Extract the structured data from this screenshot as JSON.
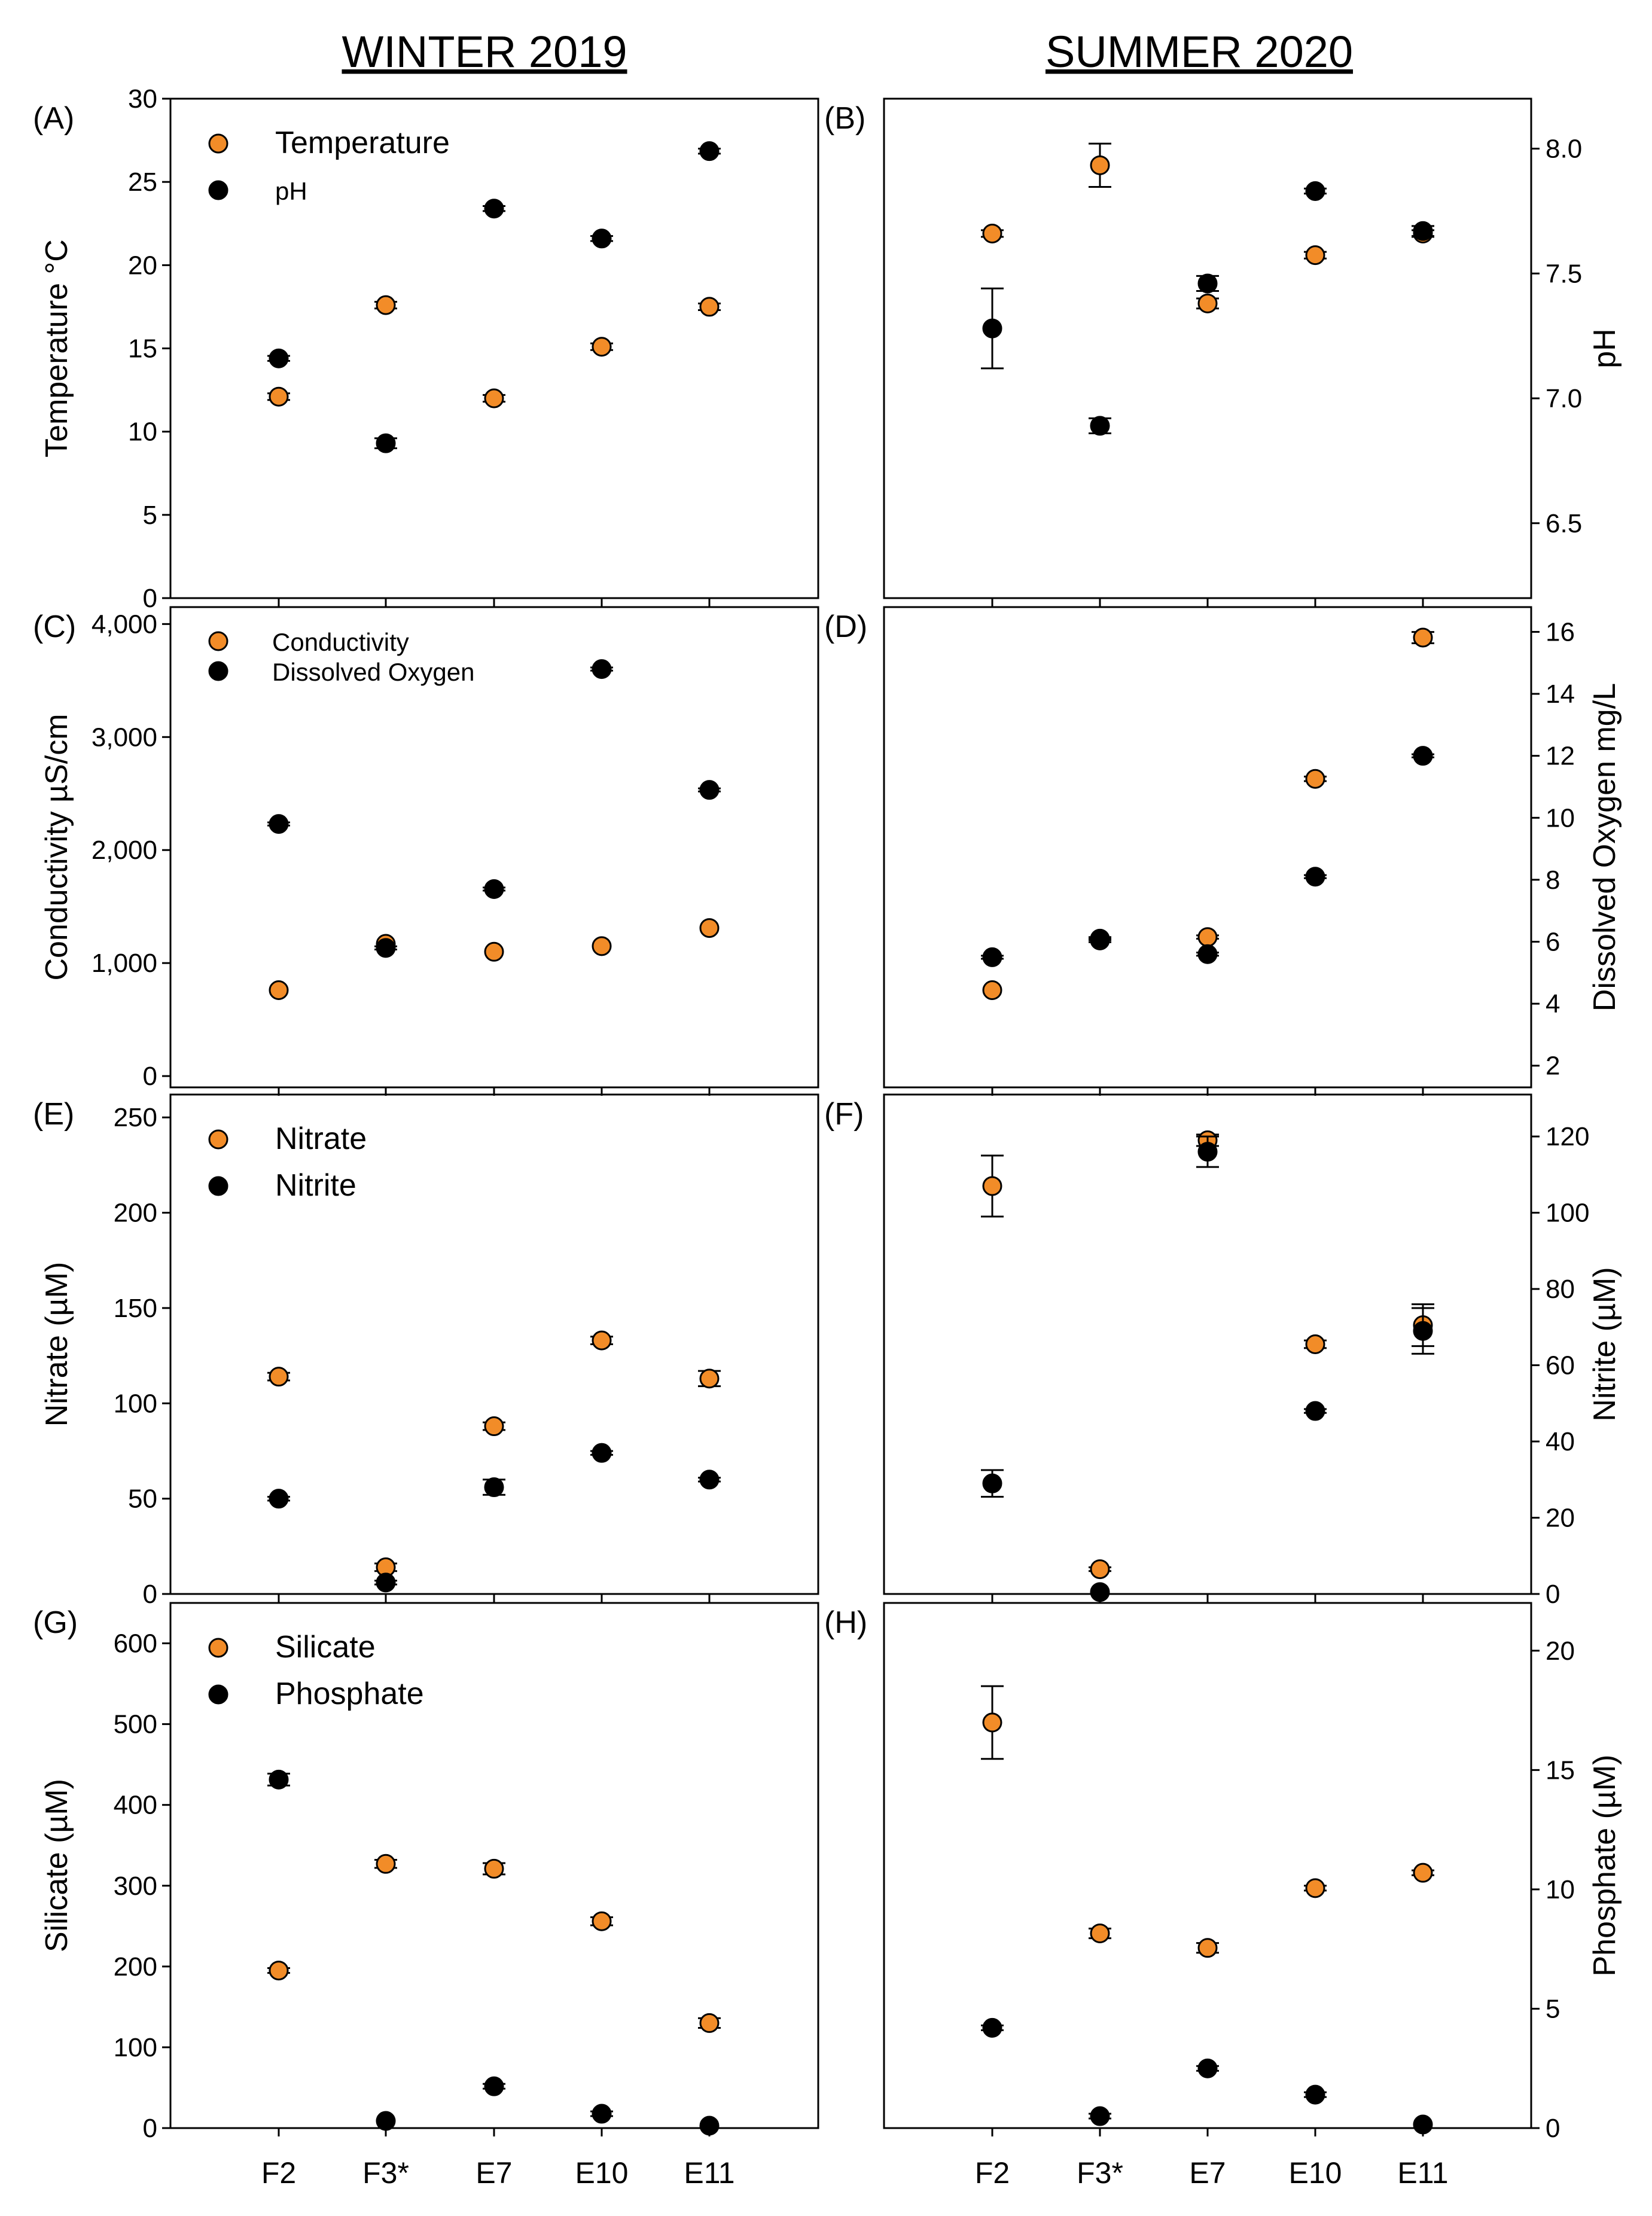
{
  "figure": {
    "left_title": "WINTER 2019",
    "right_title": "SUMMER 2020",
    "sites": [
      "F2",
      "F3*",
      "E7",
      "E10",
      "E11"
    ],
    "colors": {
      "orange": "#F28C28",
      "black": "#000000"
    }
  },
  "chart_data": [
    {
      "panel": "(A)",
      "type": "scatter",
      "title": "WINTER 2019",
      "categories": [
        "F2",
        "F3*",
        "E7",
        "E10",
        "E11"
      ],
      "left_axis": {
        "label": "Temperature °C",
        "range": [
          0,
          30
        ],
        "ticks": [
          "0",
          "5",
          "10",
          "15",
          "20",
          "25",
          "30"
        ],
        "tickvals": [
          0,
          5,
          10,
          15,
          20,
          25,
          30
        ]
      },
      "right_axis": {
        "range": [
          6.2,
          8.2
        ],
        "ticks": [],
        "tickvals": []
      },
      "legend": [
        "Temperature",
        "pH"
      ],
      "legend_position": "top-left",
      "legend_style": "large-small",
      "series": [
        {
          "name": "Temperature",
          "color": "#F28C28",
          "axis": "left",
          "values": [
            12.1,
            17.6,
            12.0,
            15.1,
            17.5
          ],
          "errors": [
            0.2,
            0.2,
            0.2,
            0.2,
            0.2
          ]
        },
        {
          "name": "pH",
          "color": "#000000",
          "axis": "right",
          "values": [
            7.16,
            6.82,
            7.76,
            7.64,
            7.99
          ],
          "errors": [
            0.01,
            0.02,
            0.01,
            0.01,
            0.01
          ]
        }
      ]
    },
    {
      "panel": "(B)",
      "type": "scatter",
      "title": "SUMMER 2020",
      "categories": [
        "F2",
        "F3*",
        "E7",
        "E10",
        "E11"
      ],
      "left_axis": {
        "range": [
          0,
          30
        ],
        "ticks": [],
        "tickvals": []
      },
      "right_axis": {
        "label": "pH",
        "range": [
          6.2,
          8.2
        ],
        "ticks": [
          "6.5",
          "7.0",
          "7.5",
          "8.0"
        ],
        "tickvals": [
          6.5,
          7.0,
          7.5,
          8.0
        ]
      },
      "legend": [],
      "legend_position": "none",
      "series": [
        {
          "name": "Temperature",
          "color": "#F28C28",
          "axis": "left",
          "values": [
            21.9,
            26.0,
            17.7,
            20.6,
            21.9
          ],
          "errors": [
            0.2,
            1.3,
            0.3,
            0.2,
            0.2
          ]
        },
        {
          "name": "pH",
          "color": "#000000",
          "axis": "right",
          "values": [
            7.28,
            6.89,
            7.46,
            7.83,
            7.67
          ],
          "errors": [
            0.16,
            0.03,
            0.03,
            0.01,
            0.02
          ]
        }
      ]
    },
    {
      "panel": "(C)",
      "type": "scatter",
      "title": "WINTER 2019",
      "categories": [
        "F2",
        "F3*",
        "E7",
        "E10",
        "E11"
      ],
      "left_axis": {
        "label": "Conductivity µS/cm",
        "range": [
          -100,
          4150
        ],
        "ticks": [
          "0",
          "1,000",
          "2,000",
          "3,000",
          "4,000"
        ],
        "tickvals": [
          0,
          1000,
          2000,
          3000,
          4000
        ]
      },
      "right_axis": {
        "range": [
          1.3,
          16.8
        ],
        "ticks": [],
        "tickvals": []
      },
      "legend": [
        "Conductivity",
        "Dissolved Oxygen"
      ],
      "legend_position": "top-left",
      "legend_style": "small",
      "series": [
        {
          "name": "Conductivity",
          "color": "#F28C28",
          "axis": "left",
          "values": [
            760,
            1170,
            1100,
            1150,
            1310
          ],
          "errors": [
            10,
            10,
            10,
            10,
            10
          ]
        },
        {
          "name": "Dissolved Oxygen",
          "color": "#000000",
          "axis": "right",
          "values": [
            9.8,
            5.8,
            7.7,
            14.8,
            10.9
          ],
          "errors": [
            0.05,
            0.05,
            0.05,
            0.05,
            0.05
          ]
        }
      ]
    },
    {
      "panel": "(D)",
      "type": "scatter",
      "title": "SUMMER 2020",
      "categories": [
        "F2",
        "F3*",
        "E7",
        "E10",
        "E11"
      ],
      "left_axis": {
        "range": [
          -100,
          4150
        ],
        "ticks": [],
        "tickvals": []
      },
      "right_axis": {
        "label": "Dissolved Oxygen mg/L",
        "range": [
          1.3,
          16.8
        ],
        "ticks": [
          "2",
          "4",
          "6",
          "8",
          "10",
          "12",
          "14",
          "16"
        ],
        "tickvals": [
          2,
          4,
          6,
          8,
          10,
          12,
          14,
          16
        ]
      },
      "legend": [],
      "legend_position": "none",
      "series": [
        {
          "name": "Conductivity",
          "color": "#F28C28",
          "axis": "left",
          "values": [
            760,
            1200,
            1230,
            2630,
            3880
          ],
          "errors": [
            10,
            15,
            15,
            20,
            50
          ]
        },
        {
          "name": "Dissolved Oxygen",
          "color": "#000000",
          "axis": "right",
          "values": [
            5.5,
            6.1,
            5.6,
            8.1,
            12.0
          ],
          "errors": [
            0.05,
            0.05,
            0.05,
            0.05,
            0.05
          ]
        }
      ]
    },
    {
      "panel": "(E)",
      "type": "scatter",
      "title": "WINTER 2019",
      "categories": [
        "F2",
        "F3*",
        "E7",
        "E10",
        "E11"
      ],
      "left_axis": {
        "label": "Nitrate (µM)",
        "range": [
          0,
          262
        ],
        "ticks": [
          "0",
          "50",
          "100",
          "150",
          "200",
          "250"
        ],
        "tickvals": [
          0,
          50,
          100,
          150,
          200,
          250
        ]
      },
      "right_axis": {
        "range": [
          0,
          131
        ],
        "ticks": [],
        "tickvals": []
      },
      "legend": [
        "Nitrate",
        "Nitrite"
      ],
      "legend_position": "top-left",
      "legend_style": "large",
      "series": [
        {
          "name": "Nitrate",
          "color": "#F28C28",
          "axis": "left",
          "values": [
            114,
            14,
            88,
            133,
            113
          ],
          "errors": [
            2,
            2,
            2,
            2,
            4
          ]
        },
        {
          "name": "Nitrite",
          "color": "#000000",
          "axis": "right",
          "values": [
            25,
            3,
            28,
            37,
            30
          ],
          "errors": [
            0.5,
            0.5,
            2,
            0.5,
            0.5
          ]
        }
      ]
    },
    {
      "panel": "(F)",
      "type": "scatter",
      "title": "SUMMER 2020",
      "categories": [
        "F2",
        "F3*",
        "E7",
        "E10",
        "E11"
      ],
      "left_axis": {
        "range": [
          0,
          262
        ],
        "ticks": [],
        "tickvals": []
      },
      "right_axis": {
        "label": "Nitrite (µM)",
        "range": [
          0,
          131
        ],
        "ticks": [
          "0",
          "20",
          "40",
          "60",
          "80",
          "100",
          "120"
        ],
        "tickvals": [
          0,
          20,
          40,
          60,
          80,
          100,
          120
        ]
      },
      "legend": [],
      "legend_position": "none",
      "series": [
        {
          "name": "Nitrate",
          "color": "#F28C28",
          "axis": "left",
          "values": [
            214,
            13,
            238,
            131,
            141
          ],
          "errors": [
            16,
            1,
            3,
            2,
            11
          ]
        },
        {
          "name": "Nitrite",
          "color": "#000000",
          "axis": "right",
          "values": [
            29,
            0.5,
            116,
            48,
            69
          ],
          "errors": [
            3.5,
            0.3,
            4,
            0.5,
            6
          ]
        }
      ]
    },
    {
      "panel": "(G)",
      "type": "scatter",
      "title": "WINTER 2019",
      "categories": [
        "F2",
        "F3*",
        "E7",
        "E10",
        "E11"
      ],
      "left_axis": {
        "label": "Silicate (µM)",
        "range": [
          0,
          650
        ],
        "ticks": [
          "0",
          "100",
          "200",
          "300",
          "400",
          "500",
          "600"
        ],
        "tickvals": [
          0,
          100,
          200,
          300,
          400,
          500,
          600
        ]
      },
      "right_axis": {
        "range": [
          0,
          22
        ],
        "ticks": [],
        "tickvals": []
      },
      "legend": [
        "Silicate",
        "Phosphate"
      ],
      "legend_position": "top-left",
      "legend_style": "large",
      "series": [
        {
          "name": "Silicate",
          "color": "#F28C28",
          "axis": "left",
          "values": [
            195,
            327,
            321,
            256,
            130
          ],
          "errors": [
            3,
            5,
            7,
            5,
            6
          ]
        },
        {
          "name": "Phosphate",
          "color": "#000000",
          "axis": "right",
          "values": [
            14.6,
            0.3,
            1.75,
            0.6,
            0.1
          ],
          "errors": [
            0.25,
            0.05,
            0.1,
            0.1,
            0.05
          ]
        }
      ]
    },
    {
      "panel": "(H)",
      "type": "scatter",
      "title": "SUMMER 2020",
      "categories": [
        "F2",
        "F3*",
        "E7",
        "E10",
        "E11"
      ],
      "left_axis": {
        "range": [
          0,
          650
        ],
        "ticks": [],
        "tickvals": []
      },
      "right_axis": {
        "label": "Phosphate (µM)",
        "range": [
          0,
          22
        ],
        "ticks": [
          "0",
          "5",
          "10",
          "15",
          "20"
        ],
        "tickvals": [
          0,
          5,
          10,
          15,
          20
        ]
      },
      "legend": [],
      "legend_position": "none",
      "series": [
        {
          "name": "Silicate",
          "color": "#F28C28",
          "axis": "left",
          "values": [
            502,
            241,
            223,
            297,
            316
          ],
          "errors": [
            45,
            6,
            6,
            3,
            3
          ]
        },
        {
          "name": "Phosphate",
          "color": "#000000",
          "axis": "right",
          "values": [
            4.2,
            0.5,
            2.5,
            1.4,
            0.15
          ],
          "errors": [
            0.1,
            0.1,
            0.1,
            0.1,
            0.05
          ]
        }
      ]
    }
  ]
}
